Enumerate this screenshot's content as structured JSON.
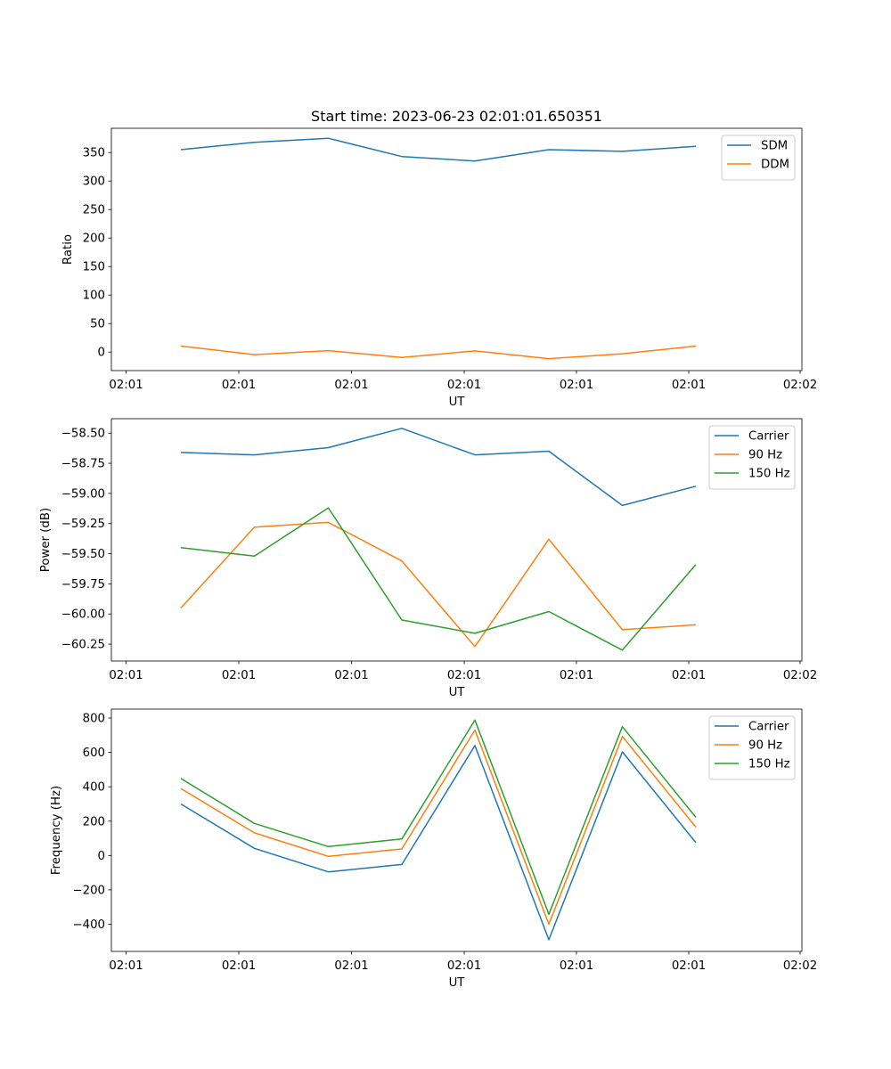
{
  "chart_data": [
    {
      "type": "line",
      "title": "Start time: 2023-06-23 02:01:01.650351",
      "xlabel": "UT",
      "ylabel": "Ratio",
      "x_tick_labels": [
        "02:01",
        "02:01",
        "02:01",
        "02:01",
        "02:01",
        "02:01",
        "02:02"
      ],
      "y_ticks": [
        0,
        50,
        100,
        150,
        200,
        250,
        300,
        350
      ],
      "ylim": [
        -32.5,
        392.5
      ],
      "legend_position": "upper right",
      "series": [
        {
          "name": "SDM",
          "color": "#1f77b4",
          "values": [
            355,
            368,
            375,
            343,
            335,
            355,
            352,
            361
          ]
        },
        {
          "name": "DDM",
          "color": "#ff7f0e",
          "values": [
            10.5,
            -4.5,
            2.5,
            -9.5,
            2,
            -11.5,
            -3,
            10.5
          ]
        }
      ]
    },
    {
      "type": "line",
      "title": "",
      "xlabel": "UT",
      "ylabel": "Power (dB)",
      "x_tick_labels": [
        "02:01",
        "02:01",
        "02:01",
        "02:01",
        "02:01",
        "02:01",
        "02:02"
      ],
      "y_ticks": [
        -60.25,
        -60.0,
        -59.75,
        -59.5,
        -59.25,
        -59.0,
        -58.75,
        -58.5
      ],
      "y_tick_labels": [
        "−60.25",
        "−60.00",
        "−59.75",
        "−59.50",
        "−59.25",
        "−59.00",
        "−58.75",
        "−58.50"
      ],
      "ylim": [
        -60.39,
        -58.38
      ],
      "legend_position": "upper right",
      "series": [
        {
          "name": "Carrier",
          "color": "#1f77b4",
          "values": [
            -58.66,
            -58.68,
            -58.62,
            -58.46,
            -58.68,
            -58.65,
            -59.1,
            -58.94
          ]
        },
        {
          "name": "90 Hz",
          "color": "#ff7f0e",
          "values": [
            -59.95,
            -59.28,
            -59.24,
            -59.56,
            -60.27,
            -59.38,
            -60.13,
            -60.09
          ]
        },
        {
          "name": "150 Hz",
          "color": "#2ca02c",
          "values": [
            -59.45,
            -59.52,
            -59.12,
            -60.05,
            -60.16,
            -59.98,
            -60.3,
            -59.59
          ]
        }
      ]
    },
    {
      "type": "line",
      "title": "",
      "xlabel": "UT",
      "ylabel": "Frequency (Hz)",
      "x_tick_labels": [
        "02:01",
        "02:01",
        "02:01",
        "02:01",
        "02:01",
        "02:01",
        "02:02"
      ],
      "y_ticks": [
        -400,
        -200,
        0,
        200,
        400,
        600,
        800
      ],
      "y_tick_labels": [
        "−400",
        "−200",
        "0",
        "200",
        "400",
        "600",
        "800"
      ],
      "ylim": [
        -558,
        852
      ],
      "legend_position": "upper right",
      "series": [
        {
          "name": "Carrier",
          "color": "#1f77b4",
          "values": [
            300,
            42,
            -95,
            -52,
            640,
            -490,
            603,
            75
          ]
        },
        {
          "name": "90 Hz",
          "color": "#ff7f0e",
          "values": [
            390,
            132,
            -5,
            38,
            730,
            -400,
            693,
            165
          ]
        },
        {
          "name": "150 Hz",
          "color": "#2ca02c",
          "values": [
            448,
            187,
            52,
            96,
            788,
            -342,
            750,
            222
          ]
        }
      ]
    }
  ]
}
